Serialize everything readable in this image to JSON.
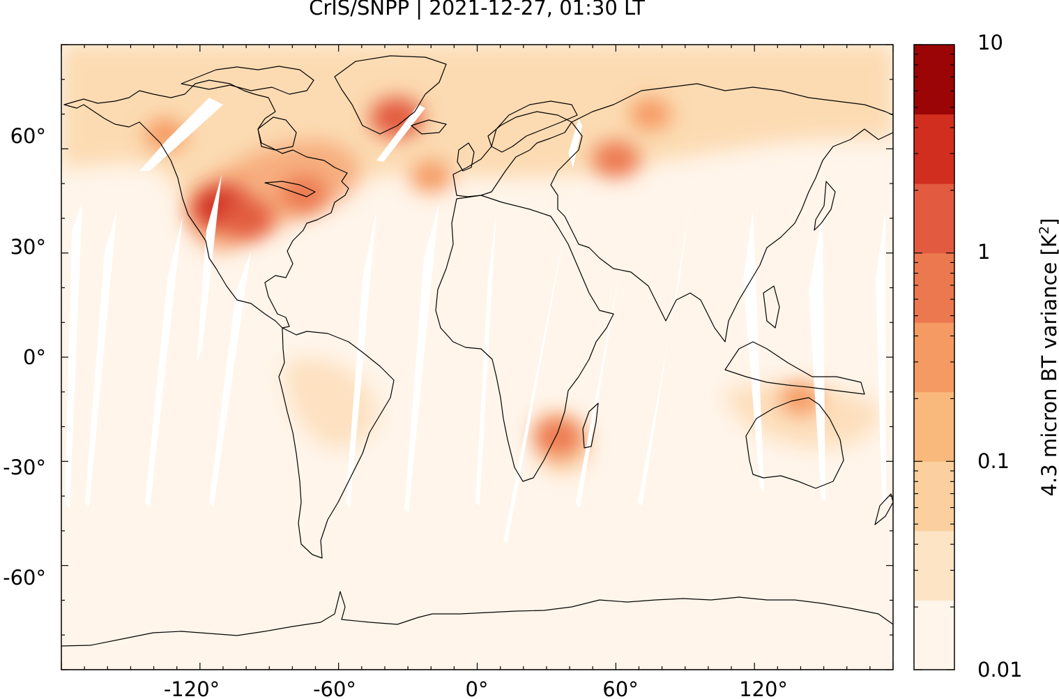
{
  "title": "CrIS/SNPP | 2021-12-27, 01:30 LT",
  "map": {
    "projection": "equirectangular",
    "lon_range": [
      -180,
      180
    ],
    "lat_range": [
      -90,
      90
    ],
    "x_ticks": [
      {
        "lon": -120,
        "label": "-120°"
      },
      {
        "lon": -60,
        "label": "-60°"
      },
      {
        "lon": 0,
        "label": "0°"
      },
      {
        "lon": 60,
        "label": "60°"
      },
      {
        "lon": 120,
        "label": "120°"
      }
    ],
    "y_ticks": [
      {
        "lat": 60,
        "label": "60°"
      },
      {
        "lat": 30,
        "label": "30°"
      },
      {
        "lat": 0,
        "label": "0°"
      },
      {
        "lat": -30,
        "label": "-30°"
      },
      {
        "lat": -60,
        "label": "-60°"
      }
    ],
    "background_color": "#fff5ea",
    "coastline_color": "#000000",
    "hotspots": [
      {
        "lon": -110,
        "lat": 43,
        "level": 6
      },
      {
        "lon": -100,
        "lat": 40,
        "level": 5
      },
      {
        "lon": -75,
        "lat": 47,
        "level": 4
      },
      {
        "lon": -35,
        "lat": 69,
        "level": 5
      },
      {
        "lon": 60,
        "lat": 57,
        "level": 4
      },
      {
        "lon": 35,
        "lat": -23,
        "level": 4
      },
      {
        "lon": 140,
        "lat": -12,
        "level": 3
      },
      {
        "lon": -135,
        "lat": 64,
        "level": 3
      },
      {
        "lon": -20,
        "lat": 52,
        "level": 3
      },
      {
        "lon": 75,
        "lat": 70,
        "level": 3
      }
    ]
  },
  "colorbar": {
    "label": "4.3 micron BT variance [K²]",
    "label_prefix": "4.3 micron BT variance [K",
    "label_sup": "2",
    "label_suffix": "]",
    "scale": "log",
    "range": [
      0.01,
      10
    ],
    "ticks": [
      {
        "value": 10,
        "label": "10"
      },
      {
        "value": 1,
        "label": "1"
      },
      {
        "value": 0.1,
        "label": "0.1"
      },
      {
        "value": 0.01,
        "label": "0.01"
      }
    ],
    "colors": [
      "#fff5ea",
      "#fce4c5",
      "#fbd09e",
      "#f9b97c",
      "#f59a62",
      "#ec7850",
      "#e25b40",
      "#d12e20",
      "#9b0505"
    ]
  }
}
